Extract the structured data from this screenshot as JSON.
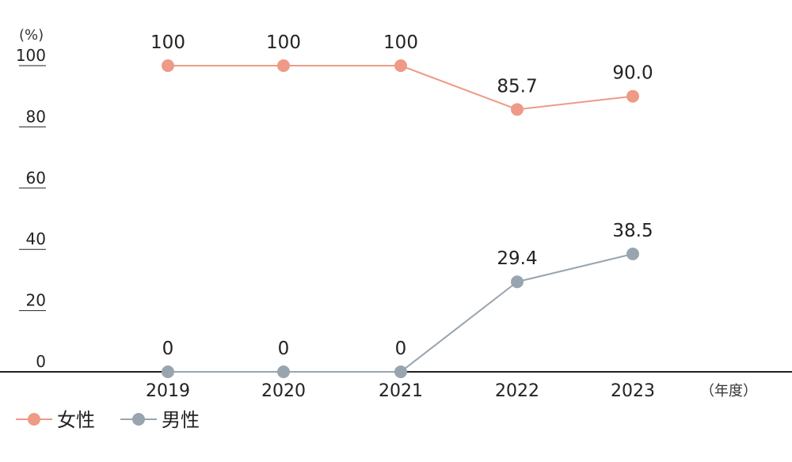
{
  "chart_data": {
    "type": "line",
    "x": [
      "2019",
      "2020",
      "2021",
      "2022",
      "2023"
    ],
    "series": [
      {
        "name": "女性",
        "values": [
          100,
          100,
          100,
          85.7,
          90.0
        ],
        "labels": [
          "100",
          "100",
          "100",
          "85.7",
          "90.0"
        ],
        "color": "#ee9a86"
      },
      {
        "name": "男性",
        "values": [
          0,
          0,
          0,
          29.4,
          38.5
        ],
        "labels": [
          "0",
          "0",
          "0",
          "29.4",
          "38.5"
        ],
        "color": "#98a5b0"
      }
    ],
    "ylim": [
      0,
      100
    ],
    "yticks": [
      "0",
      "20",
      "40",
      "60",
      "80",
      "100"
    ],
    "y_unit": "(%)",
    "x_unit": "（年度）",
    "legend_position": "bottom-left",
    "grid": false
  }
}
